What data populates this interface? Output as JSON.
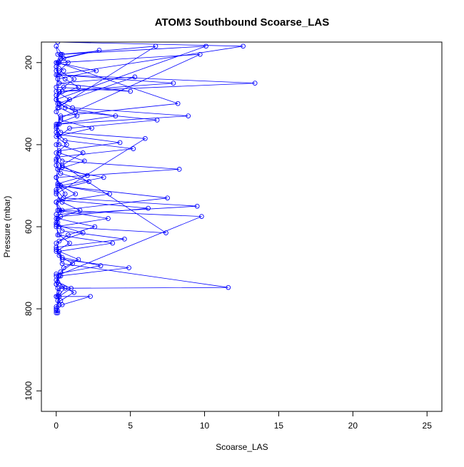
{
  "chart_data": {
    "type": "line",
    "title": "ATOM3 Southbound Scoarse_LAS",
    "xlabel": "Scoarse_LAS",
    "ylabel": "Pressure (mbar)",
    "xlim": [
      -1,
      26
    ],
    "ylim": [
      1050,
      150
    ],
    "y_inverted": true,
    "x_ticks": [
      0,
      5,
      10,
      15,
      20,
      25
    ],
    "y_ticks": [
      200,
      400,
      600,
      800,
      1000
    ],
    "grid": false,
    "legend": "none",
    "marker": "open-circle",
    "color": "#0000ff",
    "series": [
      {
        "x": [
          0,
          0.1,
          0.2,
          0,
          0.3,
          0.5,
          1.5,
          0.2,
          0,
          0.8,
          2.6,
          0.1,
          0.4,
          0,
          3.6,
          0.3,
          0,
          0.1,
          1.9,
          0.2,
          0,
          0.2,
          0.9,
          6.8,
          1.3,
          0.2,
          0,
          0.5,
          1.2,
          0.2,
          0.8,
          0.1,
          0,
          0.4,
          0.1,
          8.2,
          0.3,
          0,
          0.2,
          1.8,
          0.4,
          0,
          0.1,
          7.5,
          0.2,
          0,
          0.1,
          3.8,
          0.2,
          0.4,
          11.6,
          0.1,
          0,
          2.3,
          0.4,
          0,
          0.1
        ],
        "y": [
          800,
          780,
          760,
          740,
          720,
          700,
          680,
          660,
          640,
          620,
          600,
          580,
          560,
          540,
          520,
          500,
          480,
          460,
          440,
          420,
          400,
          380,
          360,
          340,
          320,
          300,
          280,
          260,
          240,
          220,
          200,
          180,
          160,
          180,
          200,
          300,
          330,
          360,
          400,
          420,
          450,
          480,
          500,
          530,
          560,
          590,
          620,
          640,
          660,
          690,
          748,
          750,
          770,
          770,
          790,
          805,
          810
        ]
      },
      {
        "x": [
          0,
          0.2,
          0.1,
          0.6,
          0,
          0.3,
          1.1,
          0.2,
          0,
          4.6,
          0.4,
          0.1,
          0,
          9.5,
          0.5,
          0,
          2.2,
          0.3,
          0,
          0.1,
          5.2,
          0.6,
          0,
          0.2,
          8.9,
          1.1,
          0,
          0.4,
          13.4,
          0.2,
          0,
          0.5,
          2.9,
          0.3,
          0,
          0.1,
          7.9,
          0.2,
          0,
          0.6,
          4.0,
          0.1
        ],
        "y": [
          810,
          790,
          770,
          750,
          730,
          710,
          690,
          670,
          650,
          630,
          610,
          590,
          570,
          550,
          530,
          510,
          490,
          470,
          450,
          430,
          410,
          390,
          370,
          350,
          330,
          310,
          290,
          270,
          250,
          230,
          210,
          190,
          170,
          190,
          210,
          230,
          250,
          270,
          290,
          310,
          330,
          350
        ]
      },
      {
        "x": [
          0,
          0.4,
          0,
          9.8,
          0.2,
          0,
          1.3,
          0.3,
          3.2,
          0.1,
          0,
          7.4,
          0.2,
          0,
          1.6,
          0.4,
          0,
          6.0,
          0.3,
          0,
          1.4,
          0.2,
          0,
          10.1,
          0.3,
          0,
          2.7,
          0.1,
          0,
          5.0,
          0.2,
          0,
          12.6,
          0.1
        ],
        "y": [
          770,
          745,
          720,
          575,
          560,
          540,
          520,
          500,
          480,
          460,
          440,
          615,
          600,
          580,
          560,
          540,
          520,
          385,
          370,
          350,
          330,
          310,
          290,
          160,
          180,
          200,
          220,
          240,
          260,
          270,
          250,
          230,
          160,
          150
        ]
      },
      {
        "x": [
          0.1,
          0,
          0.3,
          1.2,
          0,
          0.2,
          4.9,
          0.4,
          0,
          0.9,
          0.2,
          0,
          3.5,
          0.1,
          0,
          0.6,
          0.2,
          0,
          8.3,
          0.4,
          0,
          0.7,
          0,
          2.4,
          0.3,
          0,
          0.1,
          5.3,
          0.2,
          0,
          0.9,
          0.1,
          6.7,
          0.3,
          0,
          0.5
        ],
        "y": [
          805,
          795,
          780,
          760,
          740,
          720,
          700,
          680,
          660,
          640,
          620,
          600,
          580,
          560,
          540,
          520,
          500,
          480,
          460,
          440,
          420,
          400,
          380,
          360,
          340,
          320,
          300,
          235,
          250,
          270,
          290,
          310,
          160,
          180,
          200,
          220
        ]
      },
      {
        "x": [
          0,
          0.2,
          1.0,
          0.1,
          0,
          3.0,
          0.4,
          0,
          0.2,
          1.8,
          0,
          0.3,
          6.2,
          0.2,
          0,
          0.1,
          2.1,
          0.4,
          0,
          0.2,
          4.3,
          0.1,
          0,
          0.3,
          9.7,
          0.2,
          0,
          0.6,
          1.5,
          0
        ],
        "y": [
          800,
          770,
          750,
          735,
          715,
          695,
          675,
          655,
          635,
          615,
          595,
          575,
          555,
          535,
          515,
          495,
          475,
          455,
          435,
          415,
          395,
          375,
          355,
          335,
          180,
          200,
          220,
          240,
          260,
          280
        ]
      }
    ]
  }
}
